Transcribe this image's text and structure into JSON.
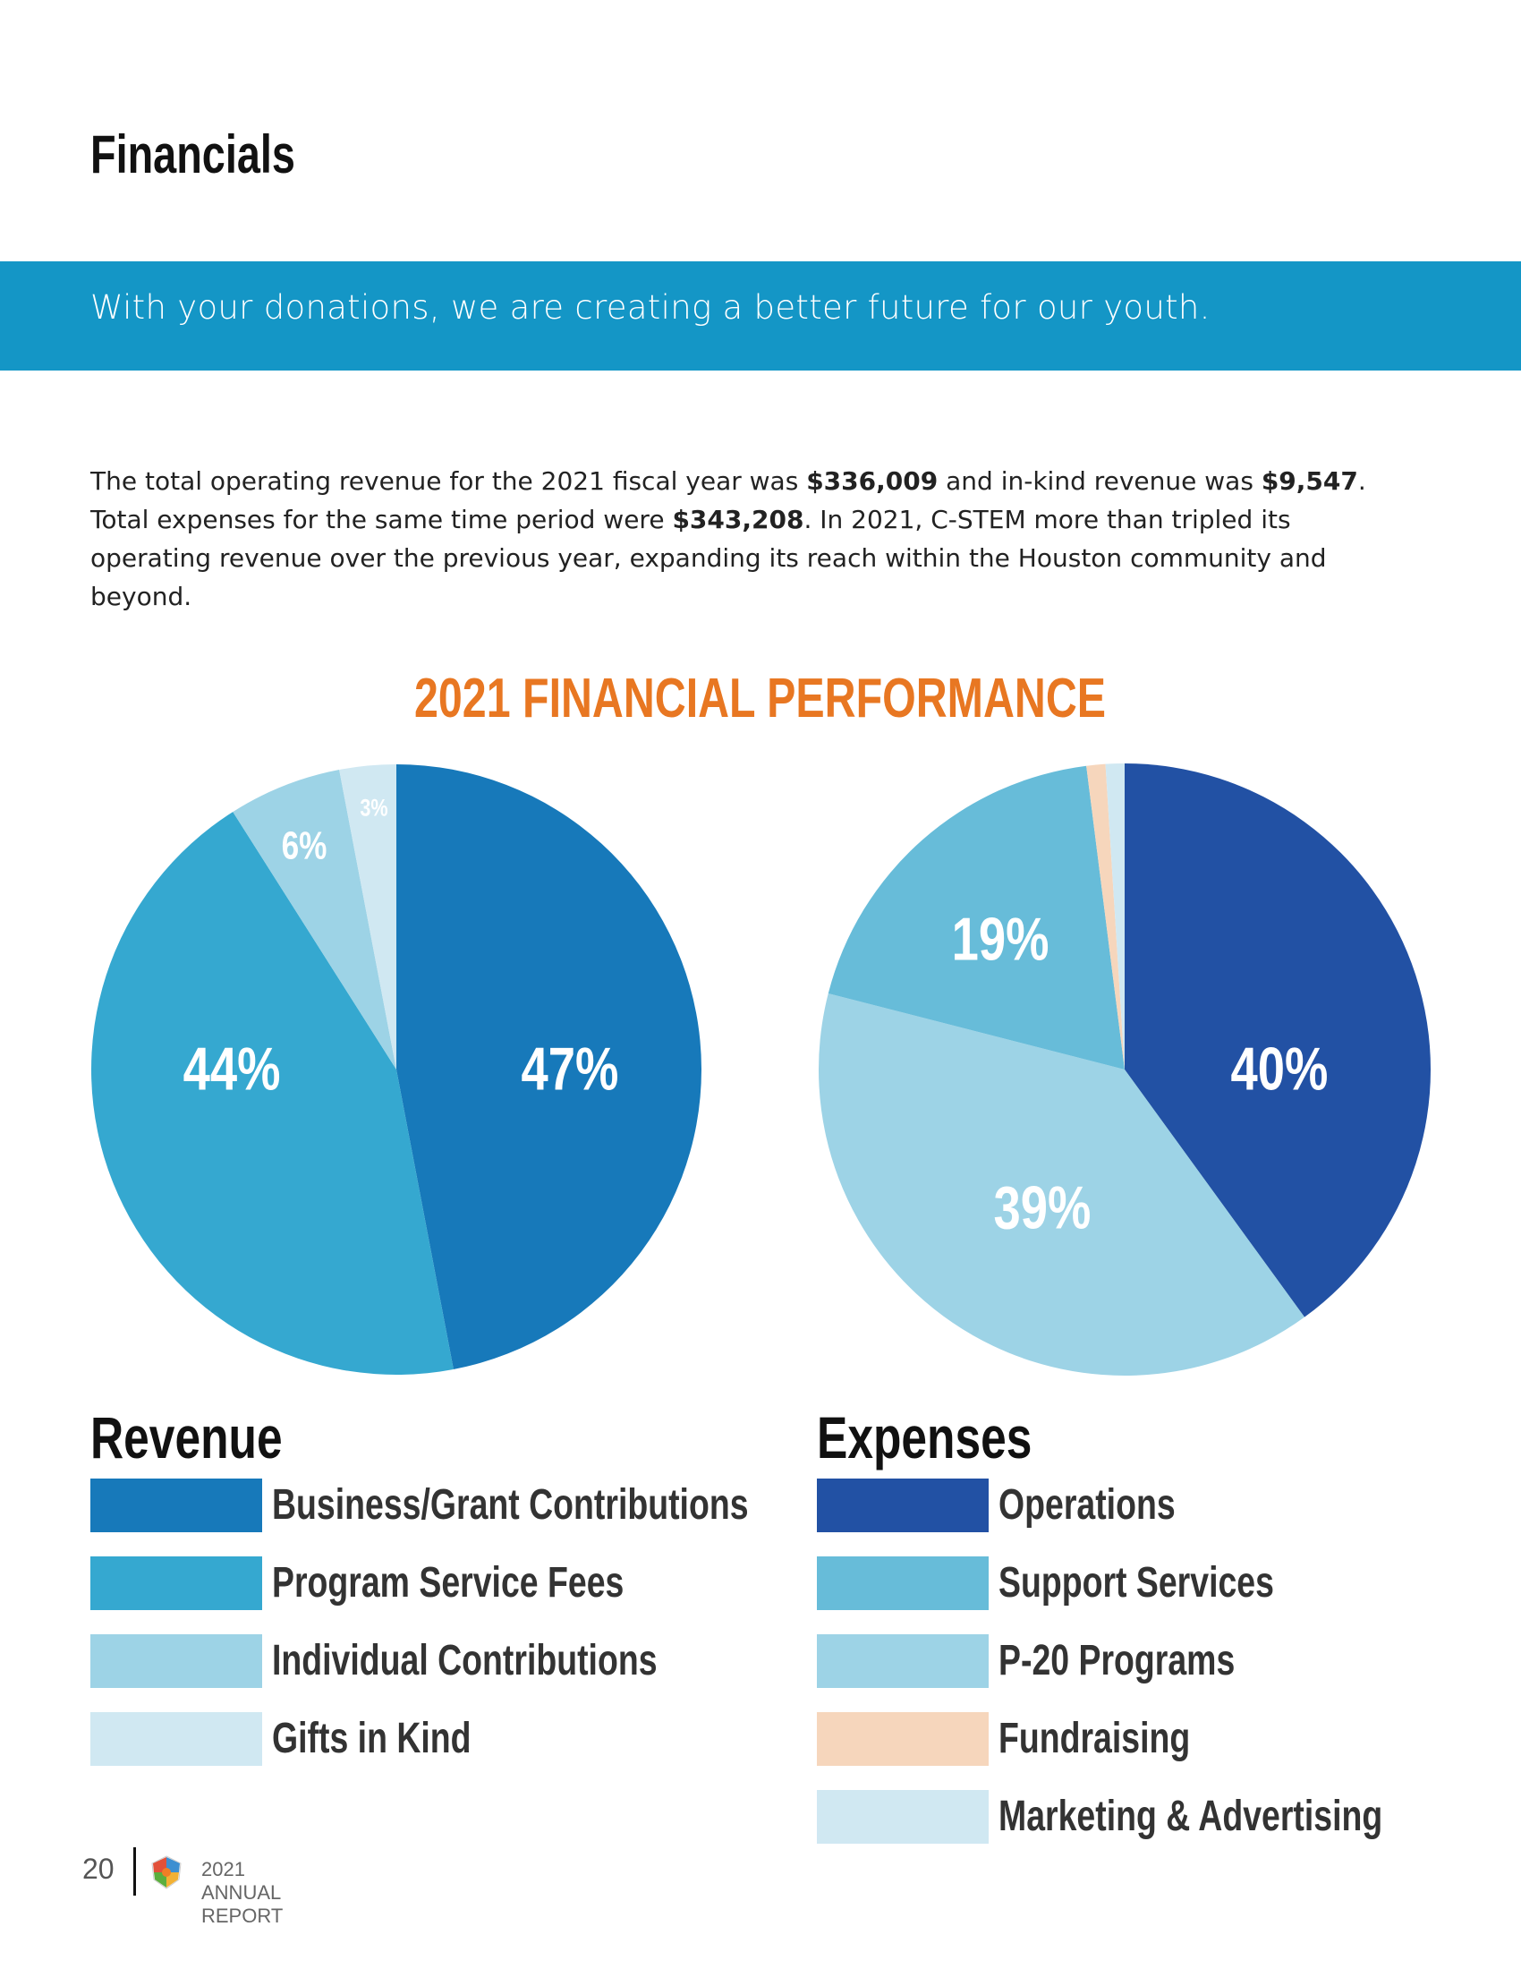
{
  "page": {
    "title": "Financials",
    "banner": "With your donations, we are creating a better future for our youth.",
    "intro": {
      "p1": "The total operating revenue for the 2021 fiscal year was ",
      "revenue": "$336,009",
      "p2": " and in-kind revenue was ",
      "inkind": "$9,547",
      "p3": ". Total expenses for the same time period were ",
      "expenses": "$343,208",
      "p4": ". In 2021, C-STEM more than tripled its operating revenue over the previous year, expanding its reach within the Houston community and beyond."
    }
  },
  "chart_data": [
    {
      "type": "pie",
      "title": "2021 FINANCIAL PERFORMANCE",
      "legend_title": "Revenue",
      "categories": [
        "Business/Grant Contributions",
        "Program Service Fees",
        "Individual Contributions",
        "Gifts in Kind"
      ],
      "values": [
        47,
        44,
        6,
        3
      ],
      "labels": [
        "47%",
        "44%",
        "6%",
        "3%"
      ],
      "colors": [
        "#1779BA",
        "#35A8D0",
        "#9DD3E6",
        "#D0E8F2"
      ],
      "unit": "%"
    },
    {
      "type": "pie",
      "title": "2021 FINANCIAL PERFORMANCE",
      "legend_title": "Expenses",
      "categories": [
        "Operations",
        "P-20 Programs",
        "Support Services",
        "Fundraising",
        "Marketing & Advertising"
      ],
      "values": [
        40,
        39,
        19,
        1,
        1
      ],
      "labels": [
        "40%",
        "39%",
        "19%",
        "",
        ""
      ],
      "colors": [
        "#2251A4",
        "#9DD3E6",
        "#67BCD9",
        "#F6D6BC",
        "#D0E8F2"
      ],
      "unit": "%"
    }
  ],
  "legend": {
    "revenue": [
      "Business/Grant Contributions",
      "Program Service Fees",
      "Individual Contributions",
      "Gifts in Kind"
    ],
    "revenue_colors": [
      "#1779BA",
      "#35A8D0",
      "#9DD3E6",
      "#D0E8F2"
    ],
    "expenses": [
      "Operations",
      "Support Services",
      "P-20 Programs",
      "Fundraising",
      "Marketing & Advertising"
    ],
    "expenses_colors": [
      "#2251A4",
      "#67BCD9",
      "#9DD3E6",
      "#F6D6BC",
      "#D0E8F2"
    ]
  },
  "footer": {
    "page_number": "20",
    "text": "2021 ANNUAL REPORT"
  },
  "colors": {
    "banner": "#1496C6",
    "accent": "#E87722"
  }
}
